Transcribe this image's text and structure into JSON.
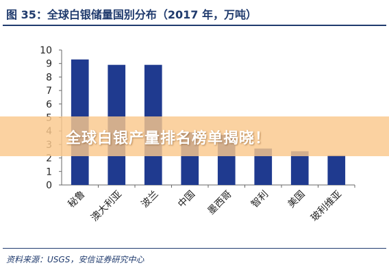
{
  "title": "图 35：全球白银储量国别分布（2017 年，万吨）",
  "banner": "全球白银产量排名榜单揭晓！",
  "source": "资料来源：USGS，安信证券研究中心",
  "colors": {
    "bar": "#1f3a8f",
    "title": "#1f3a6d"
  },
  "chart_data": {
    "type": "bar",
    "categories": [
      "秘鲁",
      "澳大利亚",
      "波兰",
      "中国",
      "墨西哥",
      "智利",
      "美国",
      "玻利维亚"
    ],
    "values": [
      9.3,
      8.9,
      8.9,
      3.9,
      3.7,
      2.7,
      2.5,
      2.2
    ],
    "ylim": [
      0,
      10
    ],
    "yticks": [
      0,
      1,
      2,
      3,
      4,
      5,
      6,
      7,
      8,
      9,
      10
    ],
    "grid": false,
    "xlabel": "",
    "ylabel": ""
  }
}
